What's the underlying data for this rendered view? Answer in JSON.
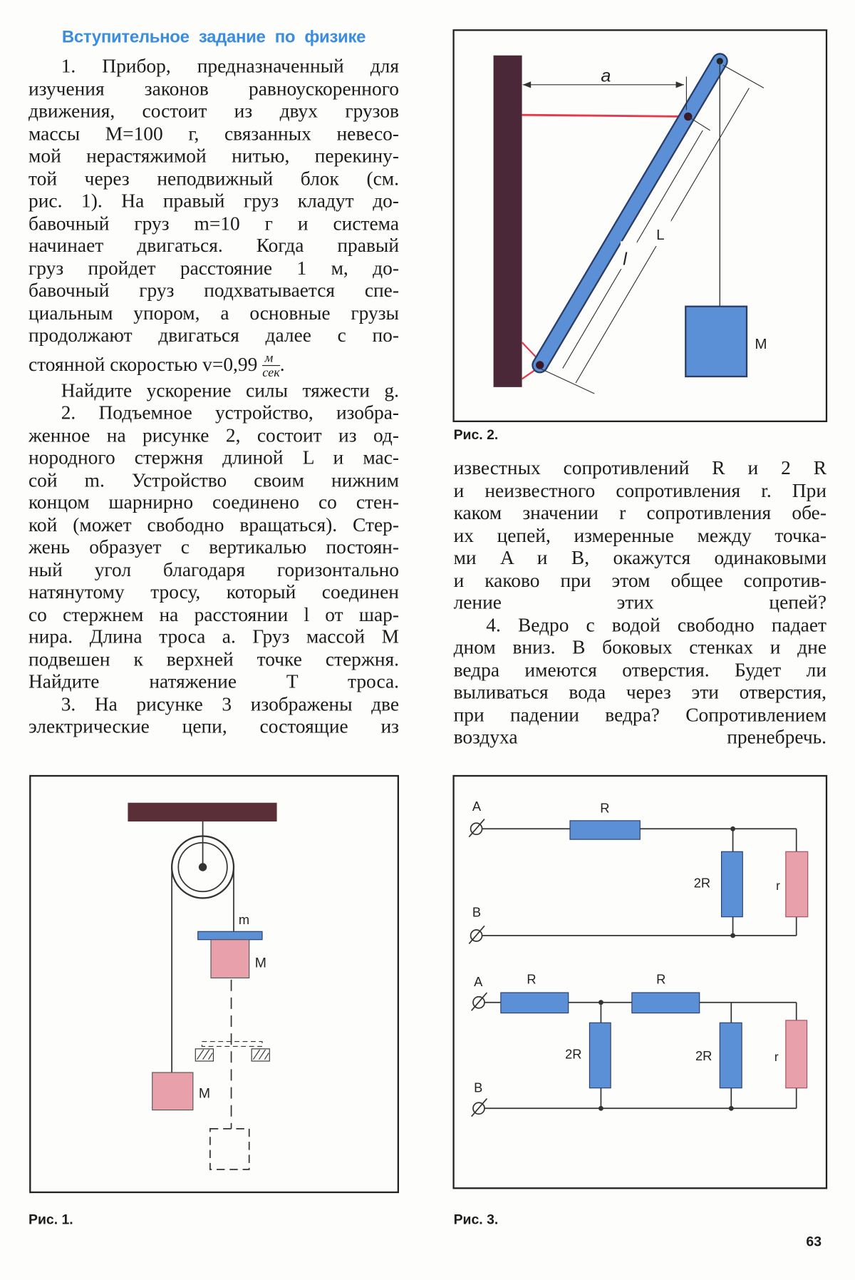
{
  "title": "Вступительное задание по физике",
  "left_lines": [
    "1. Прибор, предназначенный для",
    "изучения законов равноускоренного",
    "движения, состоит из двух грузов",
    "массы M=100 г, связанных невесо-",
    "мой нерастяжимой нитью, перекину-",
    "той через неподвижный блок (см.",
    "рис. 1). На правый груз кладут до-",
    "бавочный груз m=10 г и система",
    "начинает двигаться. Когда правый",
    "груз пройдет расстояние 1 м, до-",
    "бавочный груз подхватывается спе-",
    "циальным упором, а основные грузы",
    "продолжают двигаться далее с по-",
    "стоянной скоростью v=0,99",
    "Найдите ускорение силы тяжести g.",
    "2. Подъемное устройство, изобра-",
    "женное на рисунке 2, состоит из од-",
    "нородного стержня длиной L и мас-",
    "сой m. Устройство своим нижним",
    "концом шарнирно соединено со стен-",
    "кой (может свободно вращаться). Стер-",
    "жень образует с вертикалью постоян-",
    "ный угол благодаря горизонтально",
    "натянутому тросу, который соединен",
    "со стержнем на расстоянии l от шар-",
    "нира. Длина троса a. Груз массой M",
    "подвешен к верхней точке стержня.",
    "Найдите натяжение T троса.",
    "3. На рисунке 3 изображены две",
    "электрические цепи, состоящие из"
  ],
  "velocity_unit": {
    "numerator": "м",
    "denominator": "сек",
    "end": "."
  },
  "right_lines": [
    "известных сопротивлений R и 2 R",
    "и неизвестного сопротивления r. При",
    "каком значении r сопротивления обе-",
    "их цепей, измеренные между точка-",
    "ми A и B, окажутся одинаковыми",
    "и каково при этом общее сопротив-",
    "ление этих цепей?",
    "4. Ведро с водой свободно падает",
    "дном вниз. В боковых стенках и дне",
    "ведра имеются отверстия. Будет ли",
    "выливаться вода через эти отверстия,",
    "при падении ведра? Сопротивлением",
    "воздуха пренебречь."
  ],
  "figures": {
    "fig1": {
      "caption": "Рис. 1.",
      "label_m": "m",
      "label_M_right": "M",
      "label_M_left": "M"
    },
    "fig2": {
      "caption": "Рис. 2.",
      "label_a": "a",
      "label_l": "l",
      "label_L": "L",
      "label_M": "M"
    },
    "fig3": {
      "caption": "Рис. 3.",
      "circuit1": {
        "A": "A",
        "B": "B",
        "R": "R",
        "R2": "2R",
        "r": "r"
      },
      "circuit2": {
        "A": "A",
        "B": "B",
        "R1": "R",
        "R2": "R",
        "R2a": "2R",
        "R2b": "2R",
        "r": "r"
      }
    }
  },
  "page_number": "63",
  "colors": {
    "title": "#3b8de0",
    "blue_part": "#5b8fd6",
    "pink_part": "#e8a0aa",
    "wall": "#4a2838",
    "red_cable": "#e8394a"
  }
}
